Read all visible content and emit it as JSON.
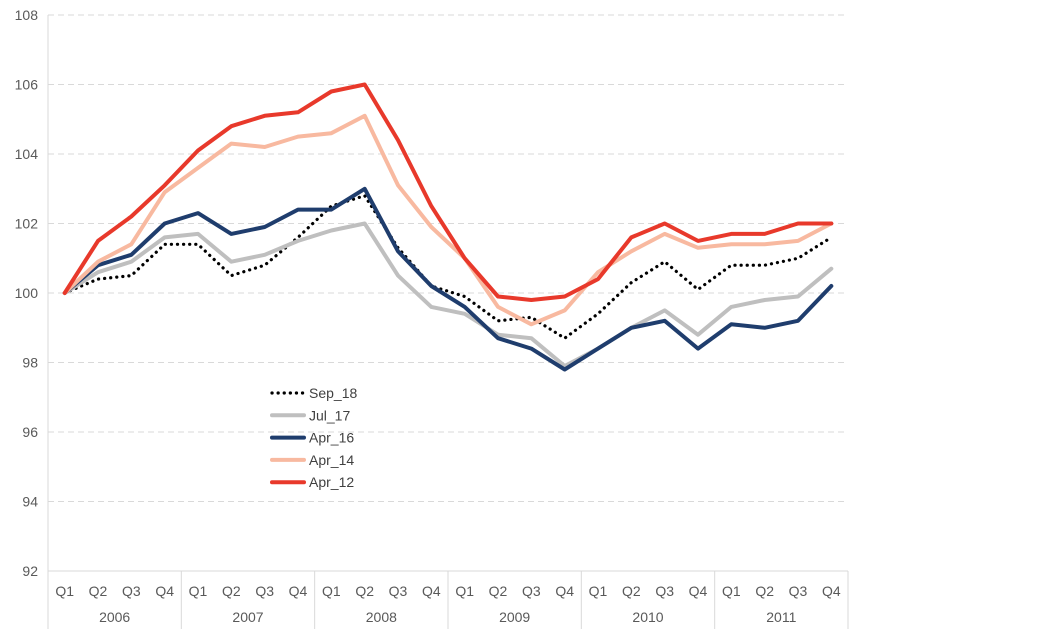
{
  "chart_data": {
    "type": "line",
    "title": "",
    "xlabel": "",
    "ylabel": "",
    "ylim": [
      92,
      108
    ],
    "yticks": [
      92,
      94,
      96,
      98,
      100,
      102,
      104,
      106,
      108
    ],
    "grid": "horizontal dashed",
    "legend_position": "center-left",
    "quarters": [
      "Q1",
      "Q2",
      "Q3",
      "Q4",
      "Q1",
      "Q2",
      "Q3",
      "Q4",
      "Q1",
      "Q2",
      "Q3",
      "Q4",
      "Q1",
      "Q2",
      "Q3",
      "Q4",
      "Q1",
      "Q2",
      "Q3",
      "Q4",
      "Q1",
      "Q2",
      "Q3",
      "Q4"
    ],
    "years": [
      "2006",
      "2007",
      "2008",
      "2009",
      "2010",
      "2011"
    ],
    "series": [
      {
        "name": "Sep_18",
        "color": "#000000",
        "style": "dotted",
        "values": [
          100.0,
          100.4,
          100.5,
          101.4,
          101.4,
          100.5,
          100.8,
          101.6,
          102.5,
          102.8,
          101.3,
          100.2,
          99.9,
          99.2,
          99.3,
          98.7,
          99.4,
          100.3,
          100.9,
          100.1,
          100.8,
          100.8,
          101.0,
          101.6
        ]
      },
      {
        "name": "Jul_17",
        "color": "#bfbfbf",
        "style": "solid",
        "values": [
          100.0,
          100.6,
          100.9,
          101.6,
          101.7,
          100.9,
          101.1,
          101.5,
          101.8,
          102.0,
          100.5,
          99.6,
          99.4,
          98.8,
          98.7,
          97.9,
          98.4,
          99.0,
          99.5,
          98.8,
          99.6,
          99.8,
          99.9,
          100.7
        ]
      },
      {
        "name": "Apr_16",
        "color": "#1f3d6d",
        "style": "solid",
        "values": [
          100.0,
          100.8,
          101.1,
          102.0,
          102.3,
          101.7,
          101.9,
          102.4,
          102.4,
          103.0,
          101.2,
          100.2,
          99.6,
          98.7,
          98.4,
          97.8,
          98.4,
          99.0,
          99.2,
          98.4,
          99.1,
          99.0,
          99.2,
          100.2
        ]
      },
      {
        "name": "Apr_14",
        "color": "#f8b9a0",
        "style": "solid",
        "values": [
          100.0,
          100.9,
          101.4,
          102.9,
          103.6,
          104.3,
          104.2,
          104.5,
          104.6,
          105.1,
          103.1,
          101.9,
          101.0,
          99.6,
          99.1,
          99.5,
          100.6,
          101.2,
          101.7,
          101.3,
          101.4,
          101.4,
          101.5,
          102.0
        ]
      },
      {
        "name": "Apr_12",
        "color": "#e8392b",
        "style": "solid",
        "values": [
          100.0,
          101.5,
          102.2,
          103.1,
          104.1,
          104.8,
          105.1,
          105.2,
          105.8,
          106.0,
          104.4,
          102.5,
          101.0,
          99.9,
          99.8,
          99.9,
          100.4,
          101.6,
          102.0,
          101.5,
          101.7,
          101.7,
          102.0,
          102.0
        ]
      }
    ]
  }
}
